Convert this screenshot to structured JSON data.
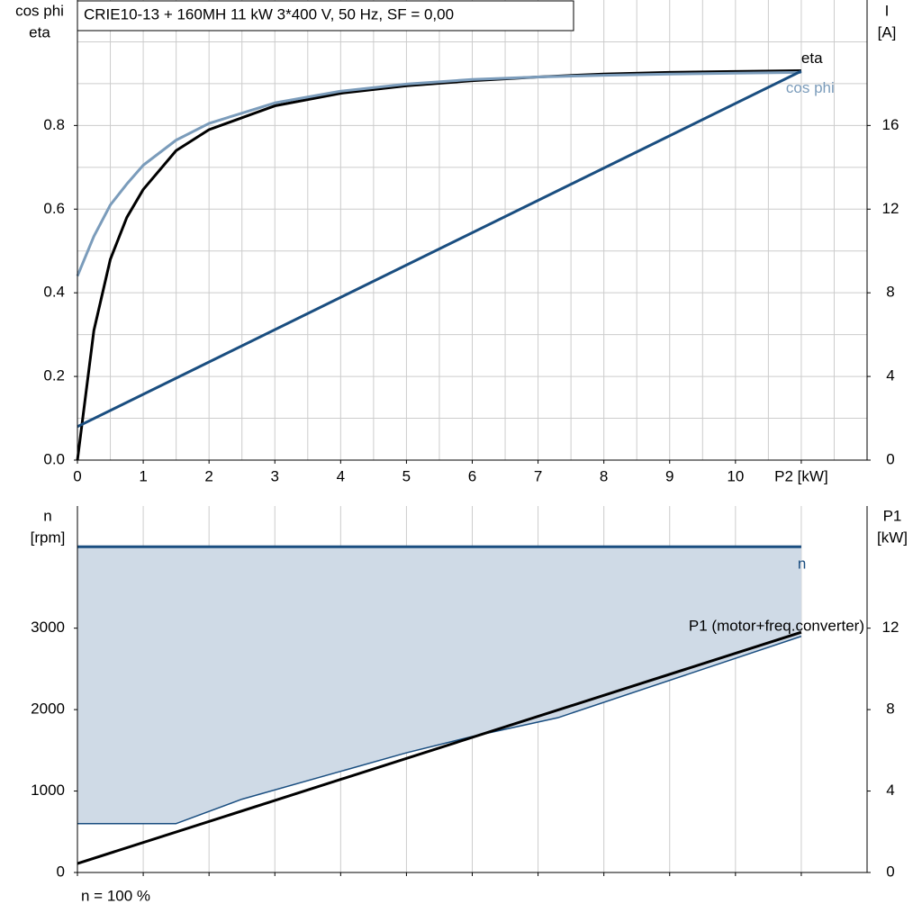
{
  "chart_data": [
    {
      "type": "line",
      "title": "CRIE10-13 + 160MH   11 kW   3*400 V, 50 Hz, SF = 0,00",
      "ylabel": [
        "cos phi",
        "eta"
      ],
      "y2label": [
        "I",
        "[A]"
      ],
      "x": [
        0,
        0.25,
        0.5,
        0.75,
        1,
        1.5,
        2,
        3,
        4,
        5,
        6,
        7,
        8,
        9,
        10,
        11
      ],
      "xlim": [
        0,
        12
      ],
      "xticks": [
        0,
        1,
        2,
        3,
        4,
        5,
        6,
        7,
        8,
        9,
        10,
        {
          "value": 11,
          "label": "P2 [kW]"
        }
      ],
      "ylim": [
        0,
        1.1
      ],
      "yticks": [
        {
          "value": 0,
          "label": "0.0"
        },
        0.2,
        0.4,
        0.6,
        0.8
      ],
      "y2lim": [
        0,
        22
      ],
      "y2ticks": [
        0,
        4,
        8,
        12,
        16
      ],
      "grid": true,
      "minor_grid": true,
      "xtick_labels": true,
      "series": [
        {
          "name": "eta",
          "color": "#000000",
          "values": [
            0.0,
            0.31,
            0.48,
            0.58,
            0.647,
            0.74,
            0.79,
            0.847,
            0.877,
            0.895,
            0.907,
            0.916,
            0.923,
            0.927,
            0.929,
            0.931
          ]
        },
        {
          "name": "cos phi",
          "color": "#7b9cbb",
          "values": [
            0.44,
            0.535,
            0.61,
            0.66,
            0.705,
            0.765,
            0.805,
            0.854,
            0.882,
            0.899,
            0.91,
            0.916,
            0.92,
            0.923,
            0.925,
            0.927
          ]
        },
        {
          "color": "#1a4e80",
          "axis": "y2",
          "x": [
            0,
            11
          ],
          "values": [
            1.6,
            18.6
          ]
        }
      ]
    },
    {
      "type": "line",
      "ylabel": [
        "n",
        "[rpm]"
      ],
      "y2label": [
        "P1",
        "[kW]"
      ],
      "note": "n = 100 %",
      "xlim": [
        0,
        12
      ],
      "xticks": [
        0,
        1,
        2,
        3,
        4,
        5,
        6,
        7,
        8,
        9,
        10,
        11
      ],
      "ylim": [
        0,
        4500
      ],
      "yticks": [
        0,
        1000,
        2000,
        3000
      ],
      "y2lim": [
        0,
        18
      ],
      "y2ticks": [
        0,
        4,
        8,
        12
      ],
      "grid": "x",
      "minor_grid": false,
      "xtick_labels": false,
      "fill": "#cfdae6",
      "series": [
        {
          "name": "n",
          "color": "#1a4e80",
          "x": [
            0,
            11
          ],
          "values": [
            4000,
            4000
          ]
        },
        {
          "color": "#1a4e80",
          "x": [
            0,
            1.5,
            2.5,
            5,
            6,
            7.3,
            11
          ],
          "values": [
            600,
            600,
            900,
            1470,
            1670,
            1900,
            2900
          ]
        },
        {
          "name": "P1 (motor+freq.converter)",
          "color": "#000000",
          "axis": "y2",
          "x": [
            0,
            11
          ],
          "values": [
            0.44,
            11.8
          ]
        }
      ]
    }
  ]
}
